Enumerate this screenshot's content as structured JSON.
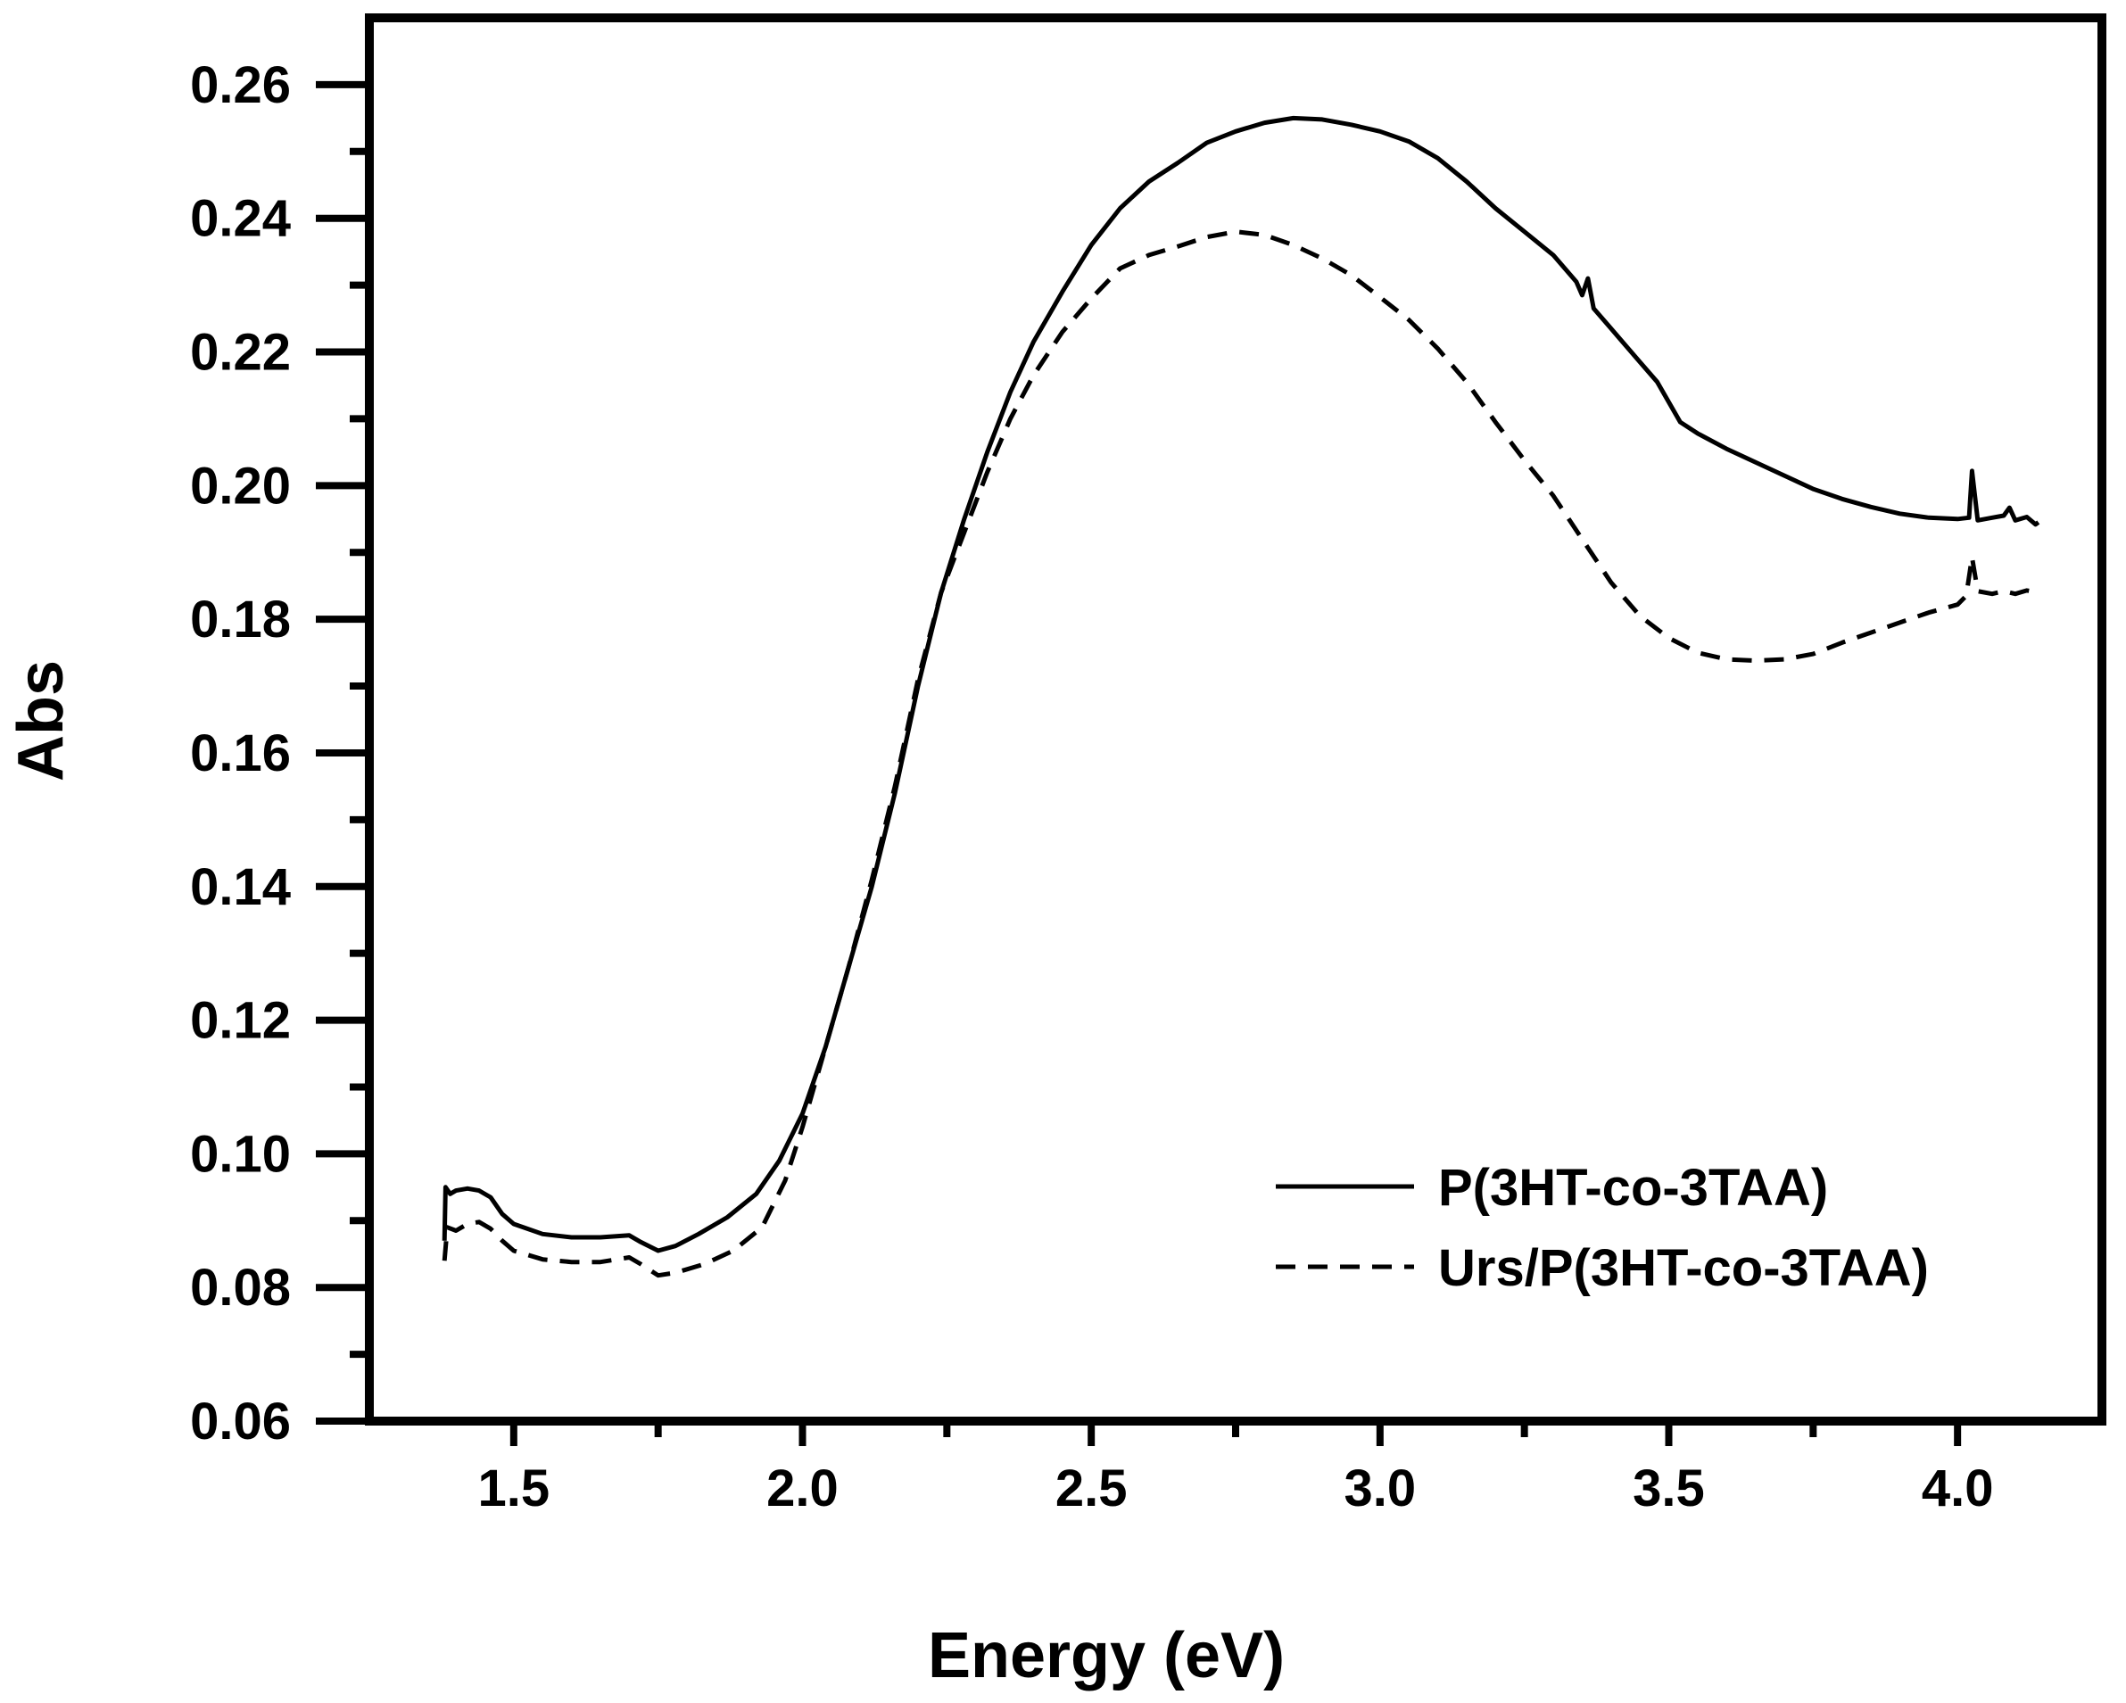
{
  "chart_data": {
    "type": "line",
    "title": "",
    "xlabel": "Energy (eV)",
    "ylabel": "Abs",
    "xlim": [
      1.25,
      4.25
    ],
    "ylim": [
      0.06,
      0.27
    ],
    "x_ticks": [
      1.5,
      2.0,
      2.5,
      3.0,
      3.5,
      4.0
    ],
    "x_tick_labels": [
      "1.5",
      "2.0",
      "2.5",
      "3.0",
      "3.5",
      "4.0"
    ],
    "x_minor_step": 0.25,
    "y_ticks": [
      0.06,
      0.08,
      0.1,
      0.12,
      0.14,
      0.16,
      0.18,
      0.2,
      0.22,
      0.24,
      0.26
    ],
    "y_tick_labels": [
      "0.06",
      "0.08",
      "0.10",
      "0.12",
      "0.14",
      "0.16",
      "0.18",
      "0.20",
      "0.22",
      "0.24",
      "0.26"
    ],
    "y_minor_step": 0.01,
    "grid": false,
    "legend_position": "bottom-right",
    "series": [
      {
        "name": "P(3HT-co-3TAA)",
        "style": "solid",
        "color": "#000000",
        "points": [
          [
            1.38,
            0.087
          ],
          [
            1.382,
            0.095
          ],
          [
            1.39,
            0.094
          ],
          [
            1.4,
            0.0945
          ],
          [
            1.42,
            0.0948
          ],
          [
            1.44,
            0.0945
          ],
          [
            1.46,
            0.0935
          ],
          [
            1.48,
            0.091
          ],
          [
            1.5,
            0.0895
          ],
          [
            1.55,
            0.088
          ],
          [
            1.6,
            0.0875
          ],
          [
            1.65,
            0.0875
          ],
          [
            1.7,
            0.0878
          ],
          [
            1.72,
            0.0868
          ],
          [
            1.75,
            0.0855
          ],
          [
            1.78,
            0.0862
          ],
          [
            1.82,
            0.088
          ],
          [
            1.87,
            0.0905
          ],
          [
            1.92,
            0.094
          ],
          [
            1.96,
            0.099
          ],
          [
            2.0,
            0.106
          ],
          [
            2.04,
            0.116
          ],
          [
            2.08,
            0.128
          ],
          [
            2.12,
            0.14
          ],
          [
            2.16,
            0.154
          ],
          [
            2.2,
            0.17
          ],
          [
            2.24,
            0.184
          ],
          [
            2.28,
            0.195
          ],
          [
            2.32,
            0.205
          ],
          [
            2.36,
            0.214
          ],
          [
            2.4,
            0.2215
          ],
          [
            2.45,
            0.229
          ],
          [
            2.5,
            0.236
          ],
          [
            2.55,
            0.2415
          ],
          [
            2.6,
            0.2455
          ],
          [
            2.65,
            0.2483
          ],
          [
            2.7,
            0.2513
          ],
          [
            2.75,
            0.253
          ],
          [
            2.8,
            0.2543
          ],
          [
            2.85,
            0.255
          ],
          [
            2.9,
            0.2548
          ],
          [
            2.95,
            0.254
          ],
          [
            3.0,
            0.253
          ],
          [
            3.05,
            0.2515
          ],
          [
            3.1,
            0.249
          ],
          [
            3.15,
            0.2455
          ],
          [
            3.2,
            0.2415
          ],
          [
            3.25,
            0.238
          ],
          [
            3.3,
            0.2345
          ],
          [
            3.34,
            0.2305
          ],
          [
            3.35,
            0.2285
          ],
          [
            3.36,
            0.231
          ],
          [
            3.37,
            0.2265
          ],
          [
            3.4,
            0.2235
          ],
          [
            3.45,
            0.2185
          ],
          [
            3.48,
            0.2155
          ],
          [
            3.5,
            0.2125
          ],
          [
            3.52,
            0.2095
          ],
          [
            3.55,
            0.2078
          ],
          [
            3.6,
            0.2055
          ],
          [
            3.65,
            0.2035
          ],
          [
            3.7,
            0.2015
          ],
          [
            3.75,
            0.1995
          ],
          [
            3.8,
            0.198
          ],
          [
            3.85,
            0.1968
          ],
          [
            3.9,
            0.1958
          ],
          [
            3.95,
            0.1952
          ],
          [
            4.0,
            0.195
          ],
          [
            4.02,
            0.1952
          ],
          [
            4.025,
            0.2022
          ],
          [
            4.035,
            0.1948
          ],
          [
            4.06,
            0.1952
          ],
          [
            4.08,
            0.1955
          ],
          [
            4.09,
            0.1967
          ],
          [
            4.1,
            0.1948
          ],
          [
            4.12,
            0.1953
          ],
          [
            4.135,
            0.1942
          ],
          [
            4.14,
            0.1945
          ]
        ]
      },
      {
        "name": "Urs/P(3HT-co-3TAA)",
        "style": "dashed",
        "color": "#000000",
        "points": [
          [
            1.38,
            0.084
          ],
          [
            1.385,
            0.089
          ],
          [
            1.4,
            0.0885
          ],
          [
            1.42,
            0.0895
          ],
          [
            1.44,
            0.0898
          ],
          [
            1.46,
            0.0888
          ],
          [
            1.48,
            0.087
          ],
          [
            1.5,
            0.0855
          ],
          [
            1.55,
            0.0842
          ],
          [
            1.6,
            0.0838
          ],
          [
            1.65,
            0.0838
          ],
          [
            1.7,
            0.0845
          ],
          [
            1.72,
            0.0835
          ],
          [
            1.75,
            0.0818
          ],
          [
            1.78,
            0.0822
          ],
          [
            1.83,
            0.0835
          ],
          [
            1.88,
            0.0855
          ],
          [
            1.93,
            0.089
          ],
          [
            1.97,
            0.096
          ],
          [
            2.0,
            0.104
          ],
          [
            2.04,
            0.116
          ],
          [
            2.08,
            0.128
          ],
          [
            2.12,
            0.141
          ],
          [
            2.16,
            0.155
          ],
          [
            2.2,
            0.171
          ],
          [
            2.24,
            0.184
          ],
          [
            2.28,
            0.193
          ],
          [
            2.32,
            0.202
          ],
          [
            2.36,
            0.21
          ],
          [
            2.4,
            0.2165
          ],
          [
            2.45,
            0.223
          ],
          [
            2.5,
            0.228
          ],
          [
            2.55,
            0.2325
          ],
          [
            2.6,
            0.2345
          ],
          [
            2.65,
            0.2358
          ],
          [
            2.7,
            0.2372
          ],
          [
            2.75,
            0.238
          ],
          [
            2.8,
            0.2375
          ],
          [
            2.85,
            0.236
          ],
          [
            2.9,
            0.234
          ],
          [
            2.95,
            0.2315
          ],
          [
            3.0,
            0.2282
          ],
          [
            3.05,
            0.2248
          ],
          [
            3.1,
            0.2205
          ],
          [
            3.15,
            0.2155
          ],
          [
            3.2,
            0.2095
          ],
          [
            3.25,
            0.2038
          ],
          [
            3.3,
            0.1985
          ],
          [
            3.35,
            0.192
          ],
          [
            3.4,
            0.1855
          ],
          [
            3.45,
            0.1805
          ],
          [
            3.5,
            0.1772
          ],
          [
            3.55,
            0.175
          ],
          [
            3.6,
            0.174
          ],
          [
            3.65,
            0.1738
          ],
          [
            3.7,
            0.174
          ],
          [
            3.75,
            0.1748
          ],
          [
            3.8,
            0.1765
          ],
          [
            3.85,
            0.178
          ],
          [
            3.9,
            0.1795
          ],
          [
            3.95,
            0.181
          ],
          [
            4.0,
            0.1822
          ],
          [
            4.015,
            0.1835
          ],
          [
            4.025,
            0.1893
          ],
          [
            4.035,
            0.1842
          ],
          [
            4.06,
            0.1838
          ],
          [
            4.08,
            0.1842
          ],
          [
            4.1,
            0.1838
          ],
          [
            4.12,
            0.1843
          ],
          [
            4.14,
            0.184
          ]
        ]
      }
    ]
  }
}
